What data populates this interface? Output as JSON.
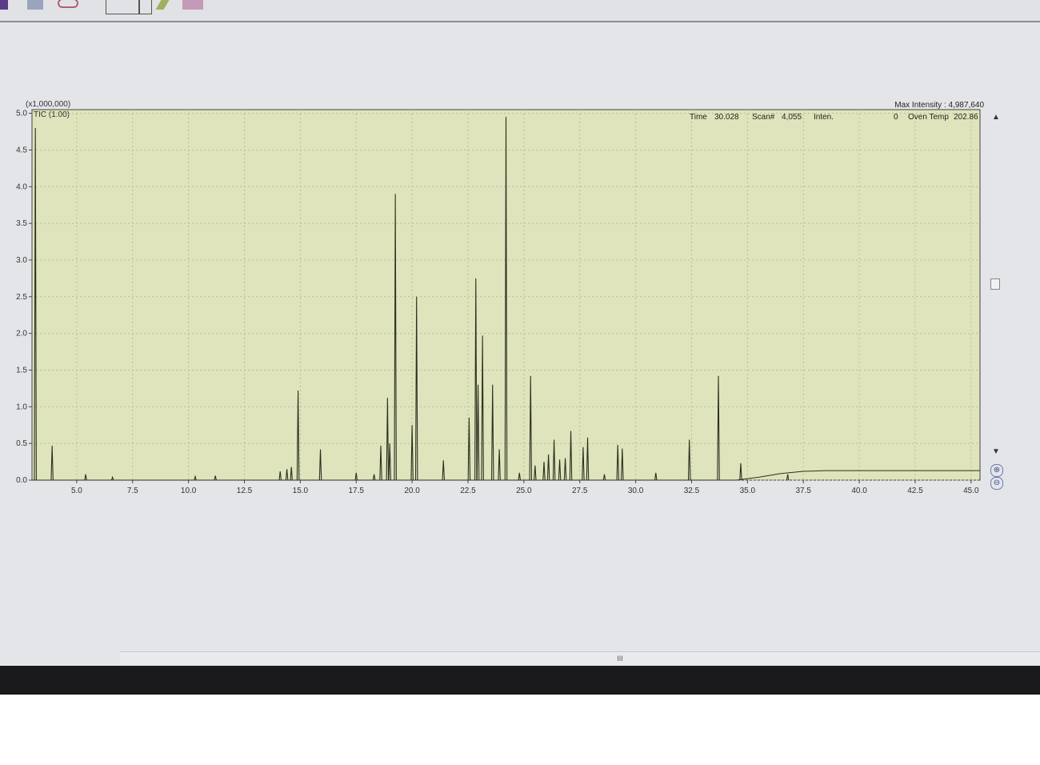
{
  "toolbar": {
    "icons": [
      "save-icon",
      "copy-icon",
      "print-icon",
      "pen-icon",
      "pencil-icon",
      "eraser-icon"
    ]
  },
  "header": {
    "multiplier": "(x1,000,000)",
    "trace_label": "TIC (1.00)",
    "max_intensity": "Max Intensity : 4,987,640",
    "time_label": "Time",
    "time_value": "30.028",
    "scan_label": "Scan#",
    "scan_value": "4,055",
    "inten_label": "Inten.",
    "inten_value": "0",
    "oven_label": "Oven Temp",
    "oven_value": "202.86"
  },
  "hscroll_label": "III",
  "colors": {
    "plot_bg": "#dfe4bc",
    "trace": "#2a3020",
    "page_bg": "#e4e5e9"
  },
  "chart_data": {
    "type": "line",
    "title": "TIC (1.00)",
    "ylabel": "(x1,000,000)",
    "xlim": [
      3.0,
      45.4
    ],
    "ylim": [
      0,
      5.05
    ],
    "grid": true,
    "x_ticks": [
      "5.0",
      "7.5",
      "10.0",
      "12.5",
      "15.0",
      "17.5",
      "20.0",
      "22.5",
      "25.0",
      "27.5",
      "30.0",
      "32.5",
      "35.0",
      "37.5",
      "40.0",
      "42.5",
      "45.0"
    ],
    "y_ticks": [
      "0.0",
      "0.5",
      "1.0",
      "1.5",
      "2.0",
      "2.5",
      "3.0",
      "3.5",
      "4.0",
      "4.5",
      "5.0"
    ],
    "peaks": [
      {
        "rt": 3.15,
        "h": 4.8
      },
      {
        "rt": 3.9,
        "h": 0.47
      },
      {
        "rt": 5.4,
        "h": 0.08
      },
      {
        "rt": 6.6,
        "h": 0.04
      },
      {
        "rt": 10.3,
        "h": 0.05
      },
      {
        "rt": 11.2,
        "h": 0.06
      },
      {
        "rt": 14.1,
        "h": 0.12
      },
      {
        "rt": 14.4,
        "h": 0.15
      },
      {
        "rt": 14.6,
        "h": 0.18
      },
      {
        "rt": 14.9,
        "h": 1.22
      },
      {
        "rt": 15.9,
        "h": 0.42
      },
      {
        "rt": 17.5,
        "h": 0.1
      },
      {
        "rt": 18.3,
        "h": 0.08
      },
      {
        "rt": 18.6,
        "h": 0.47
      },
      {
        "rt": 18.9,
        "h": 1.12
      },
      {
        "rt": 19.0,
        "h": 0.5
      },
      {
        "rt": 19.25,
        "h": 3.9
      },
      {
        "rt": 20.0,
        "h": 0.75
      },
      {
        "rt": 20.2,
        "h": 2.5
      },
      {
        "rt": 21.4,
        "h": 0.27
      },
      {
        "rt": 22.55,
        "h": 0.85
      },
      {
        "rt": 22.85,
        "h": 2.75
      },
      {
        "rt": 22.95,
        "h": 1.3
      },
      {
        "rt": 23.15,
        "h": 1.97
      },
      {
        "rt": 23.6,
        "h": 1.3
      },
      {
        "rt": 23.9,
        "h": 0.42
      },
      {
        "rt": 24.2,
        "h": 4.95
      },
      {
        "rt": 24.8,
        "h": 0.1
      },
      {
        "rt": 25.3,
        "h": 1.42
      },
      {
        "rt": 25.5,
        "h": 0.2
      },
      {
        "rt": 25.9,
        "h": 0.25
      },
      {
        "rt": 26.1,
        "h": 0.35
      },
      {
        "rt": 26.35,
        "h": 0.55
      },
      {
        "rt": 26.6,
        "h": 0.28
      },
      {
        "rt": 26.85,
        "h": 0.3
      },
      {
        "rt": 27.1,
        "h": 0.67
      },
      {
        "rt": 27.65,
        "h": 0.45
      },
      {
        "rt": 27.85,
        "h": 0.58
      },
      {
        "rt": 28.6,
        "h": 0.08
      },
      {
        "rt": 29.2,
        "h": 0.48
      },
      {
        "rt": 29.4,
        "h": 0.43
      },
      {
        "rt": 30.9,
        "h": 0.1
      },
      {
        "rt": 32.4,
        "h": 0.55
      },
      {
        "rt": 33.7,
        "h": 1.42
      },
      {
        "rt": 34.7,
        "h": 0.23
      },
      {
        "rt": 36.8,
        "h": 0.08
      }
    ],
    "baseline": [
      [
        3.0,
        0.0
      ],
      [
        34.5,
        0.0
      ],
      [
        35.5,
        0.04
      ],
      [
        36.5,
        0.09
      ],
      [
        37.5,
        0.12
      ],
      [
        38.5,
        0.13
      ],
      [
        45.4,
        0.13
      ]
    ]
  }
}
